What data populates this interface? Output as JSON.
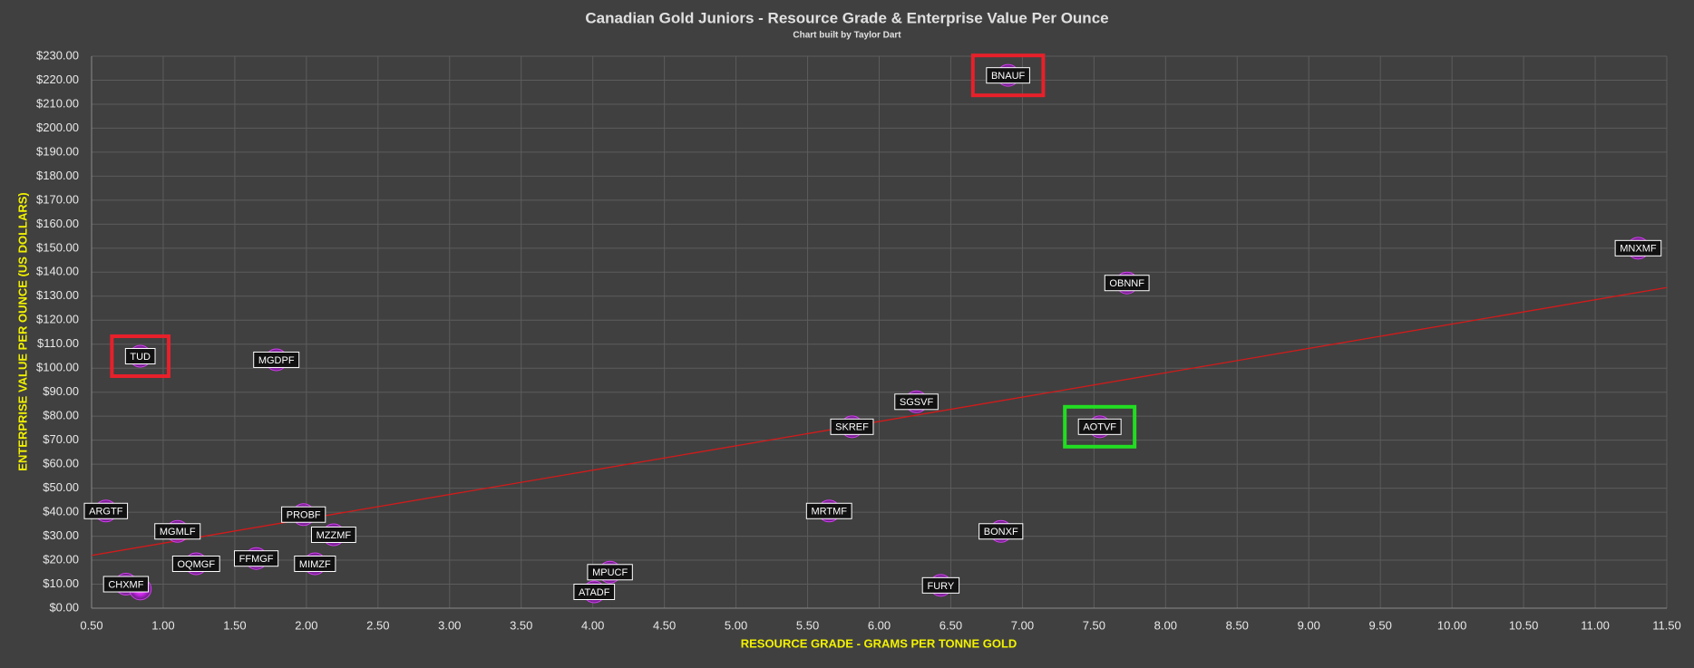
{
  "chart_data": {
    "type": "scatter",
    "title": "Canadian Gold Juniors - Resource Grade & Enterprise Value Per Ounce",
    "subtitle": "Chart built by Taylor Dart",
    "x_label": "RESOURCE GRADE - GRAMS PER TONNE GOLD",
    "y_label": "ENTERPRISE VALUE PER OUNCE (US DOLLARS)",
    "x": [
      0.6,
      0.74,
      0.84,
      0.84,
      1.1,
      1.23,
      1.65,
      1.79,
      1.98,
      2.06,
      2.19,
      4.01,
      4.12,
      5.65,
      5.81,
      6.26,
      6.43,
      6.85,
      6.9,
      7.54,
      7.73,
      11.3
    ],
    "values": [
      40.5,
      10,
      8,
      105,
      32,
      18.5,
      20.7,
      103.5,
      39,
      18.5,
      30.6,
      6.8,
      15,
      40.5,
      75.6,
      86,
      9.5,
      32,
      222,
      75.6,
      135.5,
      150
    ],
    "point_labels": [
      "ARGTF",
      "CHXMF",
      null,
      "TUD",
      "MGMLF",
      "OQMGF",
      "FFMGF",
      "MGDPF",
      "PROBF",
      "MIMZF",
      "MZZMF",
      "ATADF",
      "MPUCF",
      "MRTMF",
      "SKREF",
      "SGSVF",
      "FURY",
      "BONXF",
      "BNAUF",
      "AOTVF",
      "OBNNF",
      "MNXMF"
    ],
    "color": "#d23cf0",
    "highlights": [
      {
        "index": 3,
        "color": "#e8202a"
      },
      {
        "index": 18,
        "color": "#e8202a"
      },
      {
        "index": 19,
        "color": "#22dd22"
      }
    ],
    "trendline": {
      "x": [
        0.5,
        11.5
      ],
      "values": [
        22,
        133.6
      ],
      "color": "#d41a1a"
    },
    "xlim": [
      0.5,
      11.5
    ],
    "ylim": [
      0,
      230
    ],
    "xticks": [
      {
        "value": 0.5,
        "label": "0.50"
      },
      {
        "value": 1,
        "label": "1.00"
      },
      {
        "value": 1.5,
        "label": "1.50"
      },
      {
        "value": 2,
        "label": "2.00"
      },
      {
        "value": 2.5,
        "label": "2.50"
      },
      {
        "value": 3,
        "label": "3.00"
      },
      {
        "value": 3.5,
        "label": "3.50"
      },
      {
        "value": 4,
        "label": "4.00"
      },
      {
        "value": 4.5,
        "label": "4.50"
      },
      {
        "value": 5,
        "label": "5.00"
      },
      {
        "value": 5.5,
        "label": "5.50"
      },
      {
        "value": 6,
        "label": "6.00"
      },
      {
        "value": 6.5,
        "label": "6.50"
      },
      {
        "value": 7,
        "label": "7.00"
      },
      {
        "value": 7.5,
        "label": "7.50"
      },
      {
        "value": 8,
        "label": "8.00"
      },
      {
        "value": 8.5,
        "label": "8.50"
      },
      {
        "value": 9,
        "label": "9.00"
      },
      {
        "value": 9.5,
        "label": "9.50"
      },
      {
        "value": 10,
        "label": "10.00"
      },
      {
        "value": 10.5,
        "label": "10.50"
      },
      {
        "value": 11,
        "label": "11.00"
      },
      {
        "value": 11.5,
        "label": "11.50"
      }
    ],
    "yticks": [
      {
        "value": 0,
        "label": "$0.00"
      },
      {
        "value": 10,
        "label": "$10.00"
      },
      {
        "value": 20,
        "label": "$20.00"
      },
      {
        "value": 30,
        "label": "$30.00"
      },
      {
        "value": 40,
        "label": "$40.00"
      },
      {
        "value": 50,
        "label": "$50.00"
      },
      {
        "value": 60,
        "label": "$60.00"
      },
      {
        "value": 70,
        "label": "$70.00"
      },
      {
        "value": 80,
        "label": "$80.00"
      },
      {
        "value": 90,
        "label": "$90.00"
      },
      {
        "value": 100,
        "label": "$100.00"
      },
      {
        "value": 110,
        "label": "$110.00"
      },
      {
        "value": 120,
        "label": "$120.00"
      },
      {
        "value": 130,
        "label": "$130.00"
      },
      {
        "value": 140,
        "label": "$140.00"
      },
      {
        "value": 150,
        "label": "$150.00"
      },
      {
        "value": 160,
        "label": "$160.00"
      },
      {
        "value": 170,
        "label": "$170.00"
      },
      {
        "value": 180,
        "label": "$180.00"
      },
      {
        "value": 190,
        "label": "$190.00"
      },
      {
        "value": 200,
        "label": "$200.00"
      },
      {
        "value": 210,
        "label": "$210.00"
      },
      {
        "value": 220,
        "label": "$220.00"
      },
      {
        "value": 230,
        "label": "$230.00"
      }
    ],
    "grid": true
  }
}
